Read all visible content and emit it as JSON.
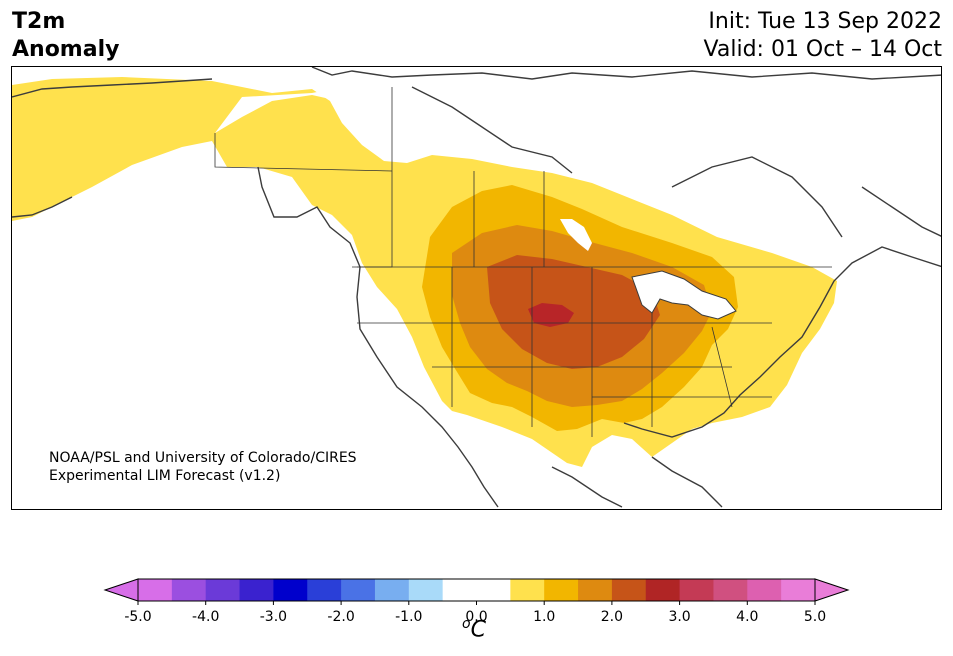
{
  "title": {
    "line1": "T2m",
    "line2": "Anomaly"
  },
  "header_right": {
    "init": "Init: Tue 13 Sep 2022",
    "valid": "Valid: 01 Oct – 14 Oct"
  },
  "credit": {
    "line1": "NOAA/PSL and University of Colorado/CIRES",
    "line2": "Experimental LIM Forecast (v1.2)"
  },
  "colorbar": {
    "ticks": [
      "-5.0",
      "-4.0",
      "-3.0",
      "-2.0",
      "-1.0",
      "0.0",
      "1.0",
      "2.0",
      "3.0",
      "4.0",
      "5.0"
    ],
    "unit_symbol": "o",
    "unit_letter": "C",
    "colors": [
      "#d76ee8",
      "#9b4fe0",
      "#6b3ad8",
      "#3a22cf",
      "#0000cc",
      "#2a3fd8",
      "#4a72e6",
      "#78aef0",
      "#a9daf9",
      "#ffffff",
      "#ffffff",
      "#ffe14d",
      "#f2b600",
      "#de8a10",
      "#c65418",
      "#b02525",
      "#c43a55",
      "#d05080",
      "#dd60b0",
      "#e97dd8"
    ],
    "min_color": "#d76ee8",
    "max_color": "#e97dd8"
  },
  "map": {
    "ocean": "#ffffff",
    "anomaly_colors": {
      "0.5": "#ffe14d",
      "1.0": "#f2b600",
      "1.5": "#de8a10",
      "2.0": "#c65418",
      "3.0": "#b82528"
    },
    "coast_color": "#3c3c3c"
  }
}
